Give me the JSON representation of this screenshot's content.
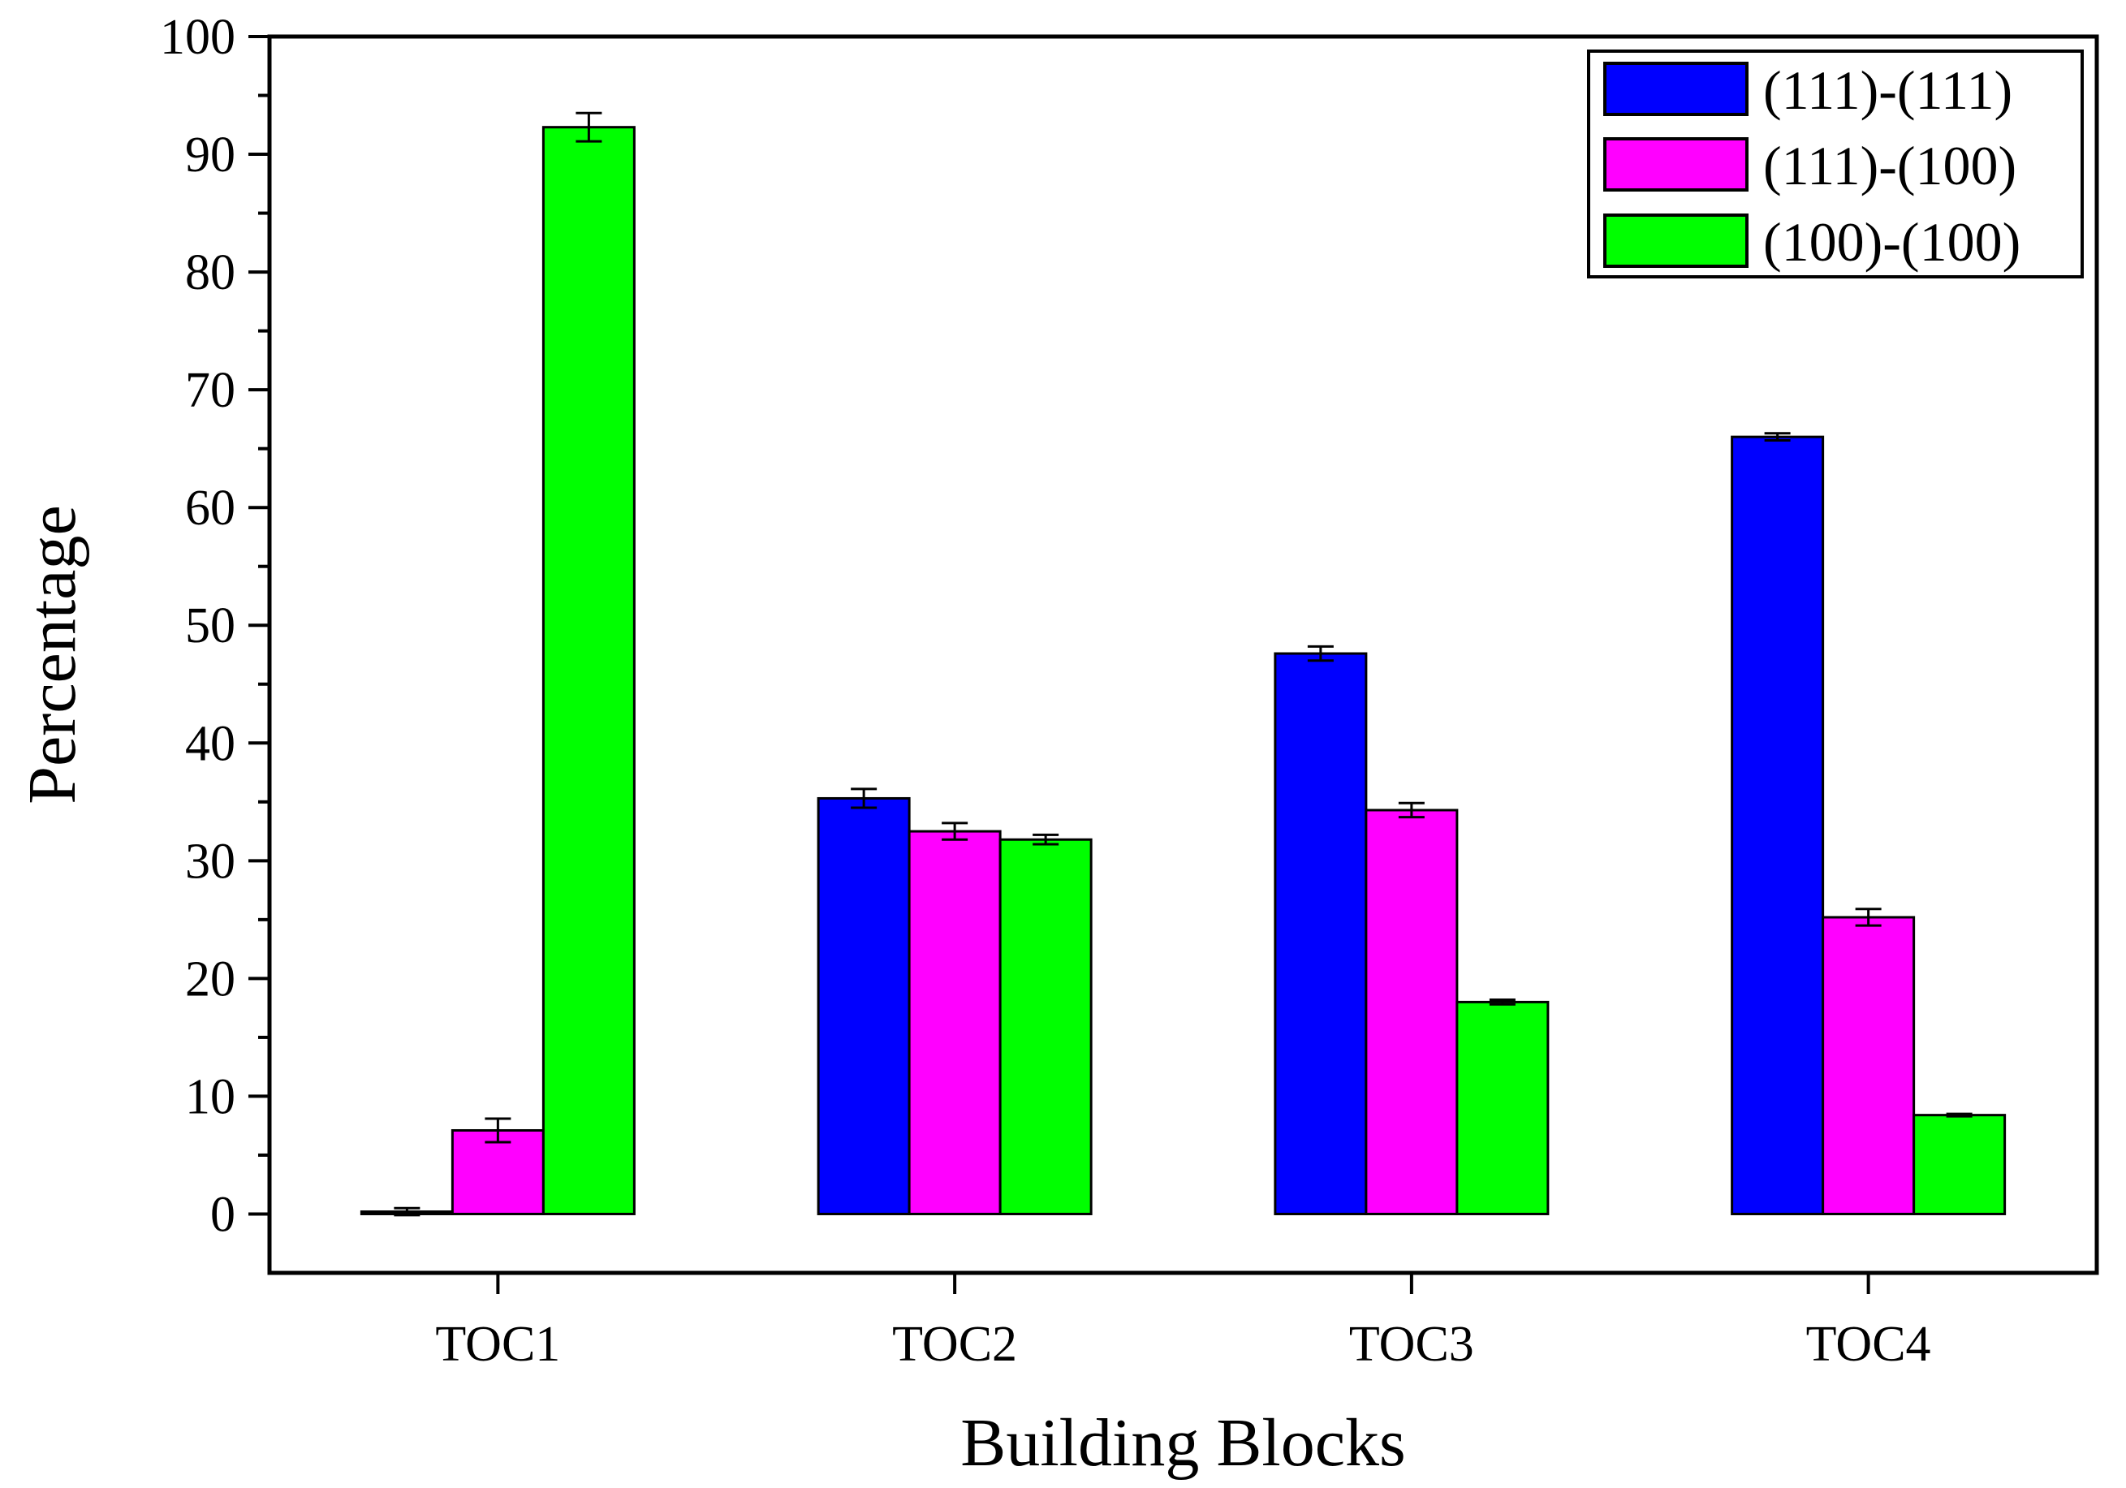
{
  "chart_data": {
    "type": "bar",
    "title": "",
    "xlabel": "Building Blocks",
    "ylabel": "Percentage",
    "categories": [
      "TOC1",
      "TOC2",
      "TOC3",
      "TOC4"
    ],
    "ylim": [
      -5,
      100
    ],
    "yticks": [
      0,
      10,
      20,
      30,
      40,
      50,
      60,
      70,
      80,
      90,
      100
    ],
    "ytick_labels": [
      "0",
      "10",
      "20",
      "30",
      "40",
      "50",
      "60",
      "70",
      "80",
      "90",
      "100"
    ],
    "grid": false,
    "legend_position": "top-right",
    "series": [
      {
        "name": "(111)-(111)",
        "color": "#0000ff",
        "values": [
          0.2,
          35.3,
          47.6,
          66.0
        ],
        "errors": [
          0.3,
          0.8,
          0.6,
          0.3
        ]
      },
      {
        "name": "(111)-(100)",
        "color": "#ff00ff",
        "values": [
          7.1,
          32.5,
          34.3,
          25.2
        ],
        "errors": [
          1.0,
          0.7,
          0.6,
          0.7
        ]
      },
      {
        "name": "(100)-(100)",
        "color": "#00ff00",
        "values": [
          92.3,
          31.8,
          18.0,
          8.4
        ],
        "errors": [
          1.2,
          0.4,
          0.2,
          0.1
        ]
      }
    ]
  }
}
